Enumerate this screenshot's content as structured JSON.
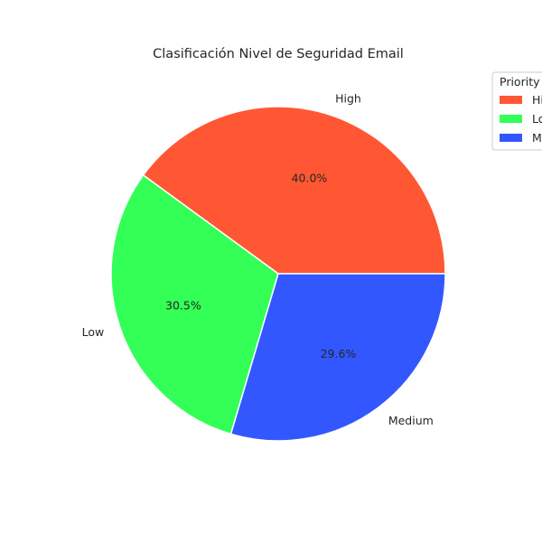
{
  "chart_data": {
    "type": "pie",
    "title": "Clasificación Nivel de Seguridad Email",
    "categories": [
      "High",
      "Low",
      "Medium"
    ],
    "values": [
      40.0,
      30.5,
      29.6
    ],
    "percent_labels": [
      "40.0%",
      "30.5%",
      "29.6%"
    ],
    "colors": [
      "#ff5733",
      "#33ff57",
      "#3357ff"
    ],
    "legend": {
      "title": "Priority",
      "placement": "top-right",
      "entries": [
        "High",
        "Low",
        "Medium"
      ]
    }
  }
}
